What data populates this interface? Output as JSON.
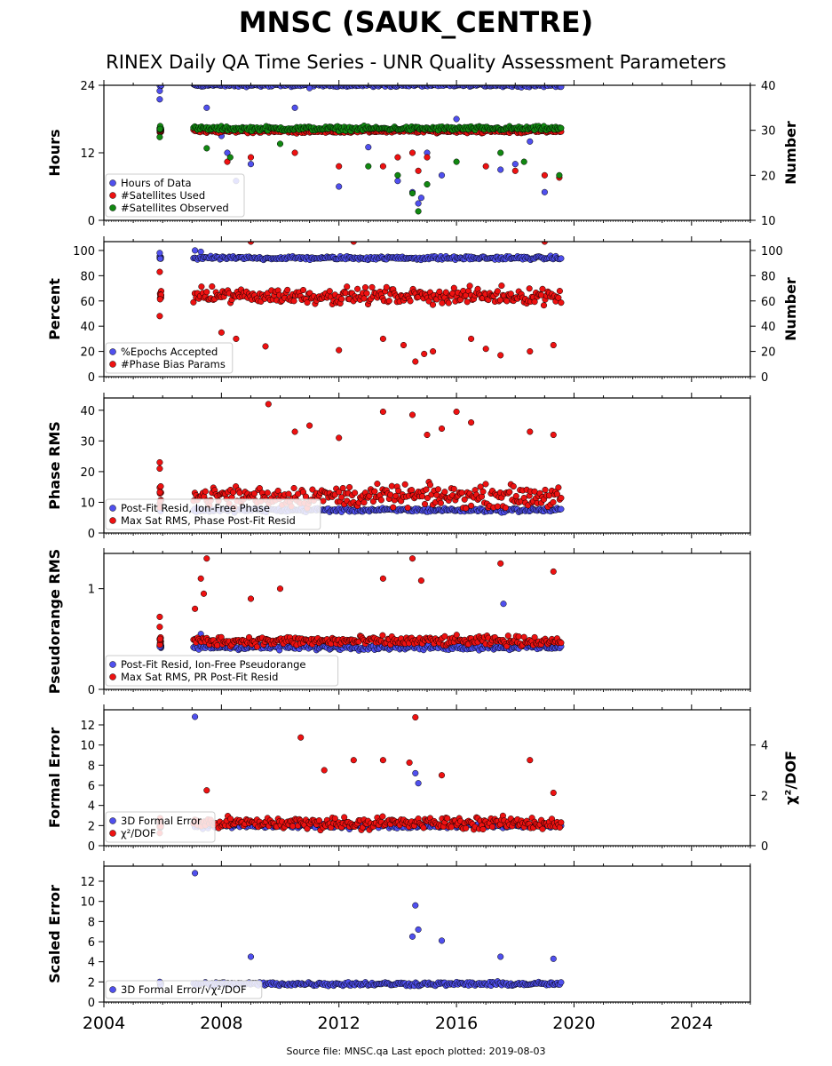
{
  "title": "MNSC (SAUK_CENTRE)",
  "subtitle": "RINEX Daily QA Time Series - UNR Quality Assessment Parameters",
  "footer": "Source file: MNSC.qa Last epoch plotted: 2019-08-03",
  "colors": {
    "blue": "#5050ee",
    "red": "#ee1111",
    "green": "#118811",
    "edge": "#000000"
  },
  "chart_data": [
    {
      "type": "scatter",
      "xlabel": "",
      "xlim": [
        2004,
        2026
      ],
      "xticks": [
        2004,
        2008,
        2012,
        2016,
        2020,
        2024
      ],
      "ylabel": "Hours",
      "ylim": [
        0,
        24
      ],
      "yticks": [
        0,
        12,
        24
      ],
      "y2label": "Number",
      "y2lim": [
        10,
        40
      ],
      "y2ticks": [
        10,
        20,
        30,
        40
      ],
      "legend": {
        "placement": "lower-left",
        "entries": [
          "Hours of Data",
          "#Satellites Used",
          "#Satellites Observed"
        ]
      },
      "series": [
        {
          "name": "Hours of Data",
          "axis": "left",
          "color": "blue",
          "base": 24,
          "spread": 0.4,
          "outliers": [
            [
              2005.9,
              23
            ],
            [
              2005.9,
              21.5
            ],
            [
              2007.5,
              20
            ],
            [
              2008.0,
              15
            ],
            [
              2008.2,
              12
            ],
            [
              2008.5,
              7
            ],
            [
              2009.0,
              10
            ],
            [
              2010.5,
              20
            ],
            [
              2011.0,
              23.5
            ],
            [
              2012.0,
              6
            ],
            [
              2013.0,
              13
            ],
            [
              2014.0,
              7
            ],
            [
              2014.5,
              5
            ],
            [
              2014.7,
              3
            ],
            [
              2014.8,
              4
            ],
            [
              2015.0,
              12
            ],
            [
              2015.5,
              8
            ],
            [
              2016.0,
              18
            ],
            [
              2017.5,
              9
            ],
            [
              2018.0,
              10
            ],
            [
              2018.5,
              14
            ],
            [
              2019.0,
              5
            ]
          ]
        },
        {
          "name": "#Satellites Used",
          "axis": "right",
          "color": "red",
          "base": 29.8,
          "spread": 0.6,
          "outliers": [
            [
              2008.2,
              23
            ],
            [
              2009.0,
              24
            ],
            [
              2010.5,
              25
            ],
            [
              2012.0,
              22
            ],
            [
              2013.5,
              22
            ],
            [
              2014.0,
              24
            ],
            [
              2014.5,
              25
            ],
            [
              2014.7,
              21
            ],
            [
              2015.0,
              24
            ],
            [
              2017.0,
              22
            ],
            [
              2018.0,
              21
            ],
            [
              2019.0,
              20
            ],
            [
              2019.5,
              19.5
            ]
          ]
        },
        {
          "name": "#Satellites Observed",
          "axis": "right",
          "color": "green",
          "base": 30.4,
          "spread": 0.7,
          "outliers": [
            [
              2005.9,
              28.5
            ],
            [
              2007.5,
              26
            ],
            [
              2008.3,
              24
            ],
            [
              2010.0,
              27
            ],
            [
              2013.0,
              22
            ],
            [
              2014.0,
              20
            ],
            [
              2014.5,
              16
            ],
            [
              2014.7,
              12
            ],
            [
              2015.0,
              18
            ],
            [
              2016.0,
              23
            ],
            [
              2017.5,
              25
            ],
            [
              2018.3,
              23
            ],
            [
              2019.5,
              20
            ]
          ]
        }
      ]
    },
    {
      "type": "scatter",
      "xlim": [
        2004,
        2026
      ],
      "xticks": [
        2004,
        2008,
        2012,
        2016,
        2020,
        2024
      ],
      "ylabel": "Percent",
      "ylim": [
        0,
        107
      ],
      "yticks": [
        0,
        20,
        40,
        60,
        80,
        100
      ],
      "y2label": "Number",
      "y2lim": [
        0,
        107
      ],
      "y2ticks": [
        0,
        20,
        40,
        60,
        80,
        100
      ],
      "legend": {
        "placement": "lower-left",
        "entries": [
          "%Epochs Accepted",
          "#Phase Bias Params"
        ]
      },
      "series": [
        {
          "name": "%Epochs Accepted",
          "axis": "left",
          "color": "blue",
          "base": 94,
          "spread": 2,
          "outliers": [
            [
              2005.9,
              98
            ],
            [
              2007.1,
              100
            ],
            [
              2007.3,
              99
            ]
          ]
        },
        {
          "name": "#Phase Bias Params",
          "axis": "right",
          "color": "red",
          "base": 64,
          "spread": 9,
          "outliers": [
            [
              2005.9,
              48
            ],
            [
              2005.9,
              83
            ],
            [
              2008.0,
              35
            ],
            [
              2008.5,
              30
            ],
            [
              2009.5,
              24
            ],
            [
              2012.0,
              21
            ],
            [
              2013.5,
              30
            ],
            [
              2014.2,
              25
            ],
            [
              2014.6,
              12
            ],
            [
              2014.9,
              18
            ],
            [
              2015.2,
              20
            ],
            [
              2016.5,
              30
            ],
            [
              2017.0,
              22
            ],
            [
              2017.5,
              17
            ],
            [
              2018.5,
              20
            ],
            [
              2019.3,
              25
            ],
            [
              2009.0,
              107
            ],
            [
              2012.5,
              107
            ],
            [
              2019.0,
              107
            ]
          ]
        }
      ]
    },
    {
      "type": "scatter",
      "xlim": [
        2004,
        2026
      ],
      "xticks": [
        2004,
        2008,
        2012,
        2016,
        2020,
        2024
      ],
      "ylabel": "Phase RMS",
      "ylim": [
        0,
        44
      ],
      "yticks": [
        0,
        10,
        20,
        30,
        40
      ],
      "legend": {
        "placement": "lower-left",
        "entries": [
          "Post-Fit Resid, Ion-Free Phase",
          "Max Sat RMS, Phase Post-Fit Resid"
        ]
      },
      "series": [
        {
          "name": "Post-Fit Resid, Ion-Free Phase",
          "axis": "left",
          "color": "blue",
          "base": 7.5,
          "spread": 1,
          "outliers": []
        },
        {
          "name": "Max Sat RMS, Phase Post-Fit Resid",
          "axis": "left",
          "color": "red",
          "base": 12,
          "spread": 5,
          "outliers": [
            [
              2005.9,
              23
            ],
            [
              2005.9,
              21
            ],
            [
              2009.6,
              42
            ],
            [
              2010.5,
              33
            ],
            [
              2011.0,
              35
            ],
            [
              2012.0,
              31
            ],
            [
              2013.5,
              39.5
            ],
            [
              2014.5,
              38.5
            ],
            [
              2015.0,
              32
            ],
            [
              2015.5,
              34
            ],
            [
              2016.0,
              39.5
            ],
            [
              2016.5,
              36
            ],
            [
              2018.5,
              33
            ],
            [
              2019.3,
              32
            ]
          ]
        }
      ]
    },
    {
      "type": "scatter",
      "xlim": [
        2004,
        2026
      ],
      "xticks": [
        2004,
        2008,
        2012,
        2016,
        2020,
        2024
      ],
      "ylabel": "Pseudorange RMS",
      "ylim": [
        0,
        1.35
      ],
      "yticks": [
        0,
        1
      ],
      "legend": {
        "placement": "lower-left",
        "entries": [
          "Post-Fit Resid, Ion-Free Pseudorange",
          "Max Sat RMS, PR Post-Fit Resid"
        ]
      },
      "series": [
        {
          "name": "Post-Fit Resid, Ion-Free Pseudorange",
          "axis": "left",
          "color": "blue",
          "base": 0.42,
          "spread": 0.04,
          "outliers": [
            [
              2005.9,
              0.5
            ],
            [
              2007.1,
              0.5
            ],
            [
              2007.3,
              0.55
            ],
            [
              2017.6,
              0.85
            ]
          ]
        },
        {
          "name": "Max Sat RMS, PR Post-Fit Resid",
          "axis": "left",
          "color": "red",
          "base": 0.48,
          "spread": 0.07,
          "outliers": [
            [
              2005.9,
              0.72
            ],
            [
              2005.9,
              0.62
            ],
            [
              2007.1,
              0.8
            ],
            [
              2007.3,
              1.1
            ],
            [
              2007.5,
              1.3
            ],
            [
              2007.4,
              0.95
            ],
            [
              2009.0,
              0.9
            ],
            [
              2010.0,
              1.0
            ],
            [
              2013.5,
              1.1
            ],
            [
              2014.5,
              1.3
            ],
            [
              2014.8,
              1.08
            ],
            [
              2017.5,
              1.25
            ],
            [
              2019.3,
              1.17
            ]
          ]
        }
      ]
    },
    {
      "type": "scatter",
      "xlim": [
        2004,
        2026
      ],
      "xticks": [
        2004,
        2008,
        2012,
        2016,
        2020,
        2024
      ],
      "ylabel": "Formal Error",
      "ylim": [
        0,
        13.5
      ],
      "yticks": [
        0,
        2,
        4,
        6,
        8,
        10,
        12
      ],
      "y2label": "χ²/DOF",
      "y2lim": [
        0,
        5.4
      ],
      "y2ticks": [
        0,
        2,
        4
      ],
      "legend": {
        "placement": "lower-left",
        "entries": [
          "3D Formal Error",
          "χ²/DOF"
        ]
      },
      "series": [
        {
          "name": "3D Formal Error",
          "axis": "left",
          "color": "blue",
          "base": 2,
          "spread": 0.4,
          "outliers": [
            [
              2007.1,
              12.8
            ],
            [
              2014.6,
              7.2
            ],
            [
              2014.7,
              6.2
            ]
          ]
        },
        {
          "name": "χ²/DOF",
          "axis": "right",
          "color": "red",
          "base": 0.9,
          "spread": 0.35,
          "outliers": [
            [
              2005.9,
              0.5
            ],
            [
              2007.5,
              2.2
            ],
            [
              2010.7,
              4.3
            ],
            [
              2011.5,
              3.0
            ],
            [
              2012.5,
              3.4
            ],
            [
              2013.5,
              3.4
            ],
            [
              2014.6,
              5.1
            ],
            [
              2014.4,
              3.3
            ],
            [
              2015.5,
              2.8
            ],
            [
              2018.5,
              3.4
            ],
            [
              2019.3,
              2.1
            ]
          ]
        }
      ]
    },
    {
      "type": "scatter",
      "xlim": [
        2004,
        2026
      ],
      "xticks": [
        2004,
        2008,
        2012,
        2016,
        2020,
        2024
      ],
      "ylabel": "Scaled Error",
      "ylim": [
        0,
        13.5
      ],
      "yticks": [
        0,
        2,
        4,
        6,
        8,
        10,
        12
      ],
      "legend": {
        "placement": "lower-left",
        "entries": [
          "3D Formal Error/√χ²/DOF"
        ]
      },
      "series": [
        {
          "name": "3D Formal Error/√χ²/DOF",
          "axis": "left",
          "color": "blue",
          "base": 1.8,
          "spread": 0.3,
          "outliers": [
            [
              2005.9,
              2
            ],
            [
              2007.1,
              12.8
            ],
            [
              2009.0,
              4.5
            ],
            [
              2014.6,
              9.6
            ],
            [
              2014.7,
              7.2
            ],
            [
              2014.5,
              6.5
            ],
            [
              2015.5,
              6.1
            ],
            [
              2017.5,
              4.5
            ],
            [
              2019.3,
              4.3
            ]
          ]
        }
      ]
    }
  ]
}
